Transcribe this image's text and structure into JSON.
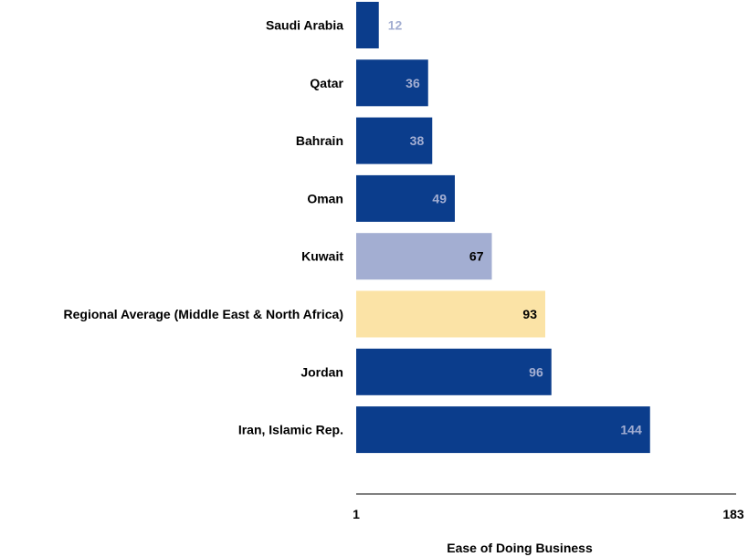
{
  "chart_data": {
    "type": "bar",
    "orientation": "horizontal",
    "categories": [
      "Saudi Arabia",
      "Qatar",
      "Bahrain",
      "Oman",
      "Kuwait",
      "Regional Average (Middle East & North Africa)",
      "Jordan",
      "Iran, Islamic Rep."
    ],
    "values": [
      12,
      36,
      38,
      49,
      67,
      93,
      96,
      144
    ],
    "bar_colors": [
      "#0b3d8c",
      "#0b3d8c",
      "#0b3d8c",
      "#0b3d8c",
      "#a3aed2",
      "#fbe3a6",
      "#0b3d8c",
      "#0b3d8c"
    ],
    "label_colors": [
      "#a3aed2",
      "#a3aed2",
      "#a3aed2",
      "#a3aed2",
      "#000000",
      "#000000",
      "#a3aed2",
      "#a3aed2"
    ],
    "xlim": [
      1,
      183
    ],
    "xticks": [
      "1",
      "183"
    ],
    "xlabel": "Ease of Doing Business",
    "title": "",
    "ylabel": "",
    "grid": false,
    "legend": "none"
  }
}
